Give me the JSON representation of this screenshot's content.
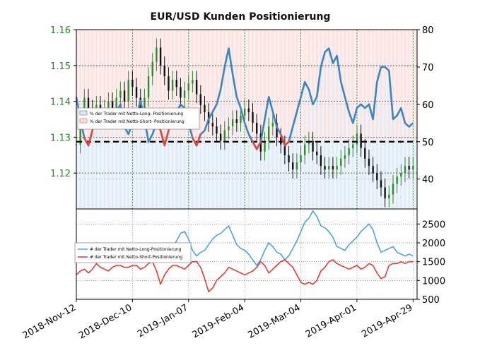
{
  "title": "EUR/USD Kunden Positionierung",
  "colors": {
    "price_axis": "#228B22",
    "long_pct_line": "#3a87c0",
    "short_pct_line": "#e8453c",
    "long_fill": "#dce9f5",
    "short_fill": "#fadcdc",
    "long_traders_line": "#4aa3e8",
    "short_traders_line": "#e53935",
    "up_candle": "#2e8b2e",
    "down_candle": "#111111"
  },
  "chart_data": [
    {
      "type": "line",
      "panel": "upper",
      "title": "EUR/USD Kunden Positionierung",
      "left_axis": {
        "ticks": [
          "1.12",
          "1.13",
          "1.14",
          "1.15",
          "1.16"
        ],
        "ylim": [
          1.11,
          1.16
        ]
      },
      "right_axis": {
        "ticks": [
          "40",
          "50",
          "60",
          "70",
          "80"
        ],
        "ylim": [
          32,
          80
        ]
      },
      "reference_line": 50,
      "legend": {
        "placement": "upper-left",
        "entries": [
          "% der Trader mit Netto-Long- Positionierung",
          "% der Trader mit Netto-Short- Positionierung"
        ]
      },
      "series": [
        {
          "name": "% der Trader mit Netto-Long- Positionierung",
          "x": [
            0,
            2,
            4,
            6,
            8,
            10,
            12,
            14,
            16,
            18,
            20,
            22,
            24,
            26,
            28,
            30,
            32,
            34,
            36,
            38,
            40,
            42,
            44,
            46,
            48,
            50,
            52,
            54,
            56,
            58,
            60,
            62,
            64,
            66,
            68,
            70,
            72,
            74,
            76,
            78,
            80,
            82,
            84,
            86,
            88,
            90,
            92,
            94,
            96,
            98,
            100,
            102,
            104,
            106,
            108,
            110,
            112,
            114,
            116,
            118,
            120,
            122,
            124,
            126,
            128,
            130,
            132,
            134,
            136,
            138,
            140,
            142,
            144,
            146,
            148,
            150,
            152,
            154,
            156,
            158,
            160,
            162,
            164,
            166,
            168
          ],
          "values": [
            62,
            56,
            51,
            49,
            53,
            57,
            58,
            56,
            55,
            57,
            58,
            60,
            54,
            52,
            55,
            57,
            61,
            56,
            50,
            52,
            55,
            53,
            49,
            53,
            56,
            58,
            60,
            59,
            55,
            51,
            49,
            52,
            53,
            56,
            58,
            60,
            64,
            70,
            75,
            68,
            62,
            59,
            55,
            52,
            50,
            48,
            50,
            56,
            62,
            58,
            54,
            52,
            49,
            50,
            54,
            58,
            62,
            66,
            64,
            60,
            62,
            70,
            74,
            75,
            71,
            73,
            66,
            62,
            58,
            55,
            59,
            60,
            59,
            60,
            56,
            66,
            70,
            70,
            69,
            56,
            57,
            59,
            55,
            54,
            55
          ]
        },
        {
          "name": "% der Trader mit Netto-Short- Positionierung",
          "x": [
            0,
            2,
            4,
            6,
            8,
            10,
            12,
            14,
            16,
            18,
            20,
            22,
            24,
            26,
            28,
            30,
            32,
            34,
            36,
            38,
            40,
            42,
            44,
            46,
            48,
            50,
            52,
            54,
            56,
            58,
            60,
            62,
            64,
            66,
            68,
            70,
            72,
            74,
            76,
            78,
            80,
            82,
            84,
            86,
            88,
            90,
            92,
            94,
            96,
            98,
            100,
            102,
            104,
            106,
            108,
            110,
            112,
            114,
            116,
            118,
            120,
            122,
            124,
            126,
            128,
            130,
            132,
            134,
            136,
            138,
            140,
            142,
            144,
            146,
            148,
            150,
            152,
            154,
            156,
            158,
            160,
            162,
            164,
            166,
            168
          ],
          "values": [
            38,
            44,
            49,
            51,
            47,
            43,
            42,
            44,
            45,
            43,
            42,
            40,
            46,
            48,
            45,
            43,
            39,
            44,
            50,
            48,
            45,
            47,
            51,
            47,
            44,
            42,
            40,
            41,
            45,
            49,
            51,
            48,
            47,
            44,
            42,
            40,
            36,
            30,
            25,
            32,
            38,
            41,
            45,
            48,
            50,
            52,
            50,
            44,
            38,
            42,
            46,
            48,
            51,
            50,
            46,
            42,
            38,
            34,
            36,
            40,
            38,
            30,
            26,
            25,
            29,
            27,
            34,
            38,
            42,
            45,
            41,
            40,
            41,
            40,
            44,
            34,
            30,
            30,
            31,
            44,
            43,
            41,
            45,
            46,
            45
          ]
        }
      ],
      "price_series": {
        "name": "EUR/USD",
        "x": [
          0,
          2,
          4,
          6,
          8,
          10,
          12,
          14,
          16,
          18,
          20,
          22,
          24,
          26,
          28,
          30,
          32,
          34,
          36,
          38,
          40,
          42,
          44,
          46,
          48,
          50,
          52,
          54,
          56,
          58,
          60,
          62,
          64,
          66,
          68,
          70,
          72,
          74,
          76,
          78,
          80,
          82,
          84,
          86,
          88,
          90,
          92,
          94,
          96,
          98,
          100,
          102,
          104,
          106,
          108,
          110,
          112,
          114,
          116,
          118,
          120,
          122,
          124,
          126,
          128,
          130,
          132,
          134,
          136,
          138,
          140,
          142,
          144,
          146,
          148,
          150,
          152,
          154,
          156,
          158,
          160,
          162,
          164,
          166,
          168
        ],
        "values": [
          1.128,
          1.135,
          1.141,
          1.138,
          1.136,
          1.139,
          1.135,
          1.138,
          1.14,
          1.137,
          1.141,
          1.143,
          1.14,
          1.146,
          1.144,
          1.141,
          1.137,
          1.141,
          1.147,
          1.151,
          1.155,
          1.15,
          1.147,
          1.143,
          1.146,
          1.144,
          1.141,
          1.143,
          1.145,
          1.146,
          1.142,
          1.139,
          1.137,
          1.134,
          1.133,
          1.131,
          1.129,
          1.132,
          1.133,
          1.135,
          1.134,
          1.136,
          1.138,
          1.137,
          1.134,
          1.131,
          1.126,
          1.129,
          1.133,
          1.134,
          1.13,
          1.128,
          1.125,
          1.123,
          1.121,
          1.123,
          1.125,
          1.128,
          1.129,
          1.126,
          1.125,
          1.122,
          1.121,
          1.122,
          1.121,
          1.122,
          1.124,
          1.125,
          1.127,
          1.128,
          1.131,
          1.127,
          1.124,
          1.122,
          1.12,
          1.118,
          1.116,
          1.113,
          1.114,
          1.117,
          1.119,
          1.12,
          1.122,
          1.121,
          1.122
        ]
      }
    },
    {
      "type": "line",
      "panel": "lower",
      "right_axis": {
        "ticks": [
          "500",
          "1000",
          "1500",
          "2000",
          "2500"
        ],
        "ylim": [
          500,
          2900
        ]
      },
      "x_tick_labels": [
        "2018-Nov-12",
        "2018-Dec-10",
        "2019-Jan-07",
        "2019-Feb-04",
        "2019-Mar-04",
        "2019-Apr-01",
        "2019-Apr-29"
      ],
      "legend": {
        "placement": "upper-left",
        "entries": [
          "# der Trader mit Netto-Long-Positionierung",
          "# der Trader mit Netto-Short-Positionierung"
        ]
      },
      "series": [
        {
          "name": "# der Trader mit Netto-Long-Positionierung",
          "x": [
            0,
            2,
            4,
            6,
            8,
            10,
            12,
            14,
            16,
            18,
            20,
            22,
            24,
            26,
            28,
            30,
            32,
            34,
            36,
            38,
            40,
            42,
            44,
            46,
            48,
            50,
            52,
            54,
            56,
            58,
            60,
            62,
            64,
            66,
            68,
            70,
            72,
            74,
            76,
            78,
            80,
            82,
            84,
            86,
            88,
            90,
            92,
            94,
            96,
            98,
            100,
            102,
            104,
            106,
            108,
            110,
            112,
            114,
            116,
            118,
            120,
            122,
            124,
            126,
            128,
            130,
            132,
            134,
            136,
            138,
            140,
            142,
            144,
            146,
            148,
            150,
            152,
            154,
            156,
            158,
            160,
            162,
            164,
            166,
            168
          ],
          "values": [
            2000,
            1800,
            1750,
            1700,
            1900,
            2000,
            1850,
            1800,
            1750,
            1850,
            1900,
            1950,
            1800,
            1700,
            1650,
            1800,
            1850,
            1700,
            1550,
            1600,
            1750,
            1700,
            1550,
            1700,
            1900,
            2050,
            2250,
            2300,
            2100,
            1800,
            1650,
            1750,
            1800,
            1950,
            2100,
            2200,
            2250,
            2350,
            2450,
            2200,
            1950,
            1850,
            1800,
            1700,
            1550,
            1400,
            1550,
            1800,
            2000,
            1900,
            1750,
            1700,
            1550,
            1650,
            1850,
            2050,
            2300,
            2550,
            2650,
            2850,
            2700,
            2450,
            2400,
            2300,
            2150,
            1900,
            1850,
            1800,
            1950,
            2050,
            2150,
            2300,
            2400,
            2500,
            2350,
            2000,
            1750,
            1800,
            1850,
            1900,
            1750,
            1700,
            1650,
            1700,
            1650
          ]
        },
        {
          "name": "# der Trader mit Netto-Short-Positionierung",
          "x": [
            0,
            2,
            4,
            6,
            8,
            10,
            12,
            14,
            16,
            18,
            20,
            22,
            24,
            26,
            28,
            30,
            32,
            34,
            36,
            38,
            40,
            42,
            44,
            46,
            48,
            50,
            52,
            54,
            56,
            58,
            60,
            62,
            64,
            66,
            68,
            70,
            72,
            74,
            76,
            78,
            80,
            82,
            84,
            86,
            88,
            90,
            92,
            94,
            96,
            98,
            100,
            102,
            104,
            106,
            108,
            110,
            112,
            114,
            116,
            118,
            120,
            122,
            124,
            126,
            128,
            130,
            132,
            134,
            136,
            138,
            140,
            142,
            144,
            146,
            148,
            150,
            152,
            154,
            156,
            158,
            160,
            162,
            164,
            166,
            168
          ],
          "values": [
            1150,
            1250,
            1300,
            1200,
            1300,
            1450,
            1350,
            1300,
            1250,
            1350,
            1400,
            1400,
            1350,
            1350,
            1400,
            1400,
            1300,
            1350,
            1450,
            1500,
            1250,
            900,
            1150,
            1300,
            1400,
            1400,
            1350,
            1300,
            1400,
            1500,
            1500,
            1350,
            1050,
            700,
            800,
            1000,
            1100,
            1200,
            1350,
            1300,
            1250,
            1200,
            1150,
            1200,
            1250,
            1350,
            1500,
            1400,
            1200,
            1300,
            1400,
            1500,
            1550,
            1450,
            1350,
            1150,
            950,
            900,
            950,
            900,
            1000,
            1250,
            1350,
            1500,
            1550,
            1450,
            1400,
            1350,
            1300,
            1350,
            1400,
            1300,
            1350,
            1450,
            1400,
            1200,
            1050,
            1100,
            1400,
            1450,
            1450,
            1500,
            1450,
            1500,
            1500
          ]
        }
      ]
    }
  ]
}
